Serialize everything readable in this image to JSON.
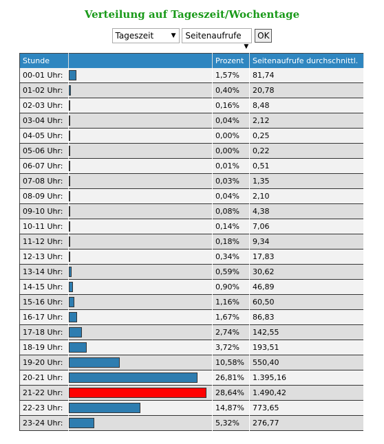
{
  "header": {
    "title": "Verteilung auf Tageszeit/Wochentage"
  },
  "controls": {
    "period": "Tageszeit",
    "metric": "Seitenaufrufe",
    "submit": "OK"
  },
  "table": {
    "columns": {
      "hour": "Stunde",
      "percent": "Prozent",
      "avg": "Seitenaufrufe durchschnittl."
    },
    "bar_color": "#2e7db0",
    "highlight_color": "#ff0000",
    "rows": [
      {
        "hour": "00-01 Uhr:",
        "percent": 1.57,
        "percent_label": "1,57%",
        "avg": "81,74"
      },
      {
        "hour": "01-02 Uhr:",
        "percent": 0.4,
        "percent_label": "0,40%",
        "avg": "20,78"
      },
      {
        "hour": "02-03 Uhr:",
        "percent": 0.16,
        "percent_label": "0,16%",
        "avg": "8,48"
      },
      {
        "hour": "03-04 Uhr:",
        "percent": 0.04,
        "percent_label": "0,04%",
        "avg": "2,12"
      },
      {
        "hour": "04-05 Uhr:",
        "percent": 0.0,
        "percent_label": "0,00%",
        "avg": "0,25"
      },
      {
        "hour": "05-06 Uhr:",
        "percent": 0.0,
        "percent_label": "0,00%",
        "avg": "0,22"
      },
      {
        "hour": "06-07 Uhr:",
        "percent": 0.01,
        "percent_label": "0,01%",
        "avg": "0,51"
      },
      {
        "hour": "07-08 Uhr:",
        "percent": 0.03,
        "percent_label": "0,03%",
        "avg": "1,35"
      },
      {
        "hour": "08-09 Uhr:",
        "percent": 0.04,
        "percent_label": "0,04%",
        "avg": "2,10"
      },
      {
        "hour": "09-10 Uhr:",
        "percent": 0.08,
        "percent_label": "0,08%",
        "avg": "4,38"
      },
      {
        "hour": "10-11 Uhr:",
        "percent": 0.14,
        "percent_label": "0,14%",
        "avg": "7,06"
      },
      {
        "hour": "11-12 Uhr:",
        "percent": 0.18,
        "percent_label": "0,18%",
        "avg": "9,34"
      },
      {
        "hour": "12-13 Uhr:",
        "percent": 0.34,
        "percent_label": "0,34%",
        "avg": "17,83"
      },
      {
        "hour": "13-14 Uhr:",
        "percent": 0.59,
        "percent_label": "0,59%",
        "avg": "30,62"
      },
      {
        "hour": "14-15 Uhr:",
        "percent": 0.9,
        "percent_label": "0,90%",
        "avg": "46,89"
      },
      {
        "hour": "15-16 Uhr:",
        "percent": 1.16,
        "percent_label": "1,16%",
        "avg": "60,50"
      },
      {
        "hour": "16-17 Uhr:",
        "percent": 1.67,
        "percent_label": "1,67%",
        "avg": "86,83"
      },
      {
        "hour": "17-18 Uhr:",
        "percent": 2.74,
        "percent_label": "2,74%",
        "avg": "142,55"
      },
      {
        "hour": "18-19 Uhr:",
        "percent": 3.72,
        "percent_label": "3,72%",
        "avg": "193,51"
      },
      {
        "hour": "19-20 Uhr:",
        "percent": 10.58,
        "percent_label": "10,58%",
        "avg": "550,40"
      },
      {
        "hour": "20-21 Uhr:",
        "percent": 26.81,
        "percent_label": "26,81%",
        "avg": "1.395,16"
      },
      {
        "hour": "21-22 Uhr:",
        "percent": 28.64,
        "percent_label": "28,64%",
        "avg": "1.490,42"
      },
      {
        "hour": "22-23 Uhr:",
        "percent": 14.87,
        "percent_label": "14,87%",
        "avg": "773,65"
      },
      {
        "hour": "23-24 Uhr:",
        "percent": 5.32,
        "percent_label": "5,32%",
        "avg": "276,77"
      }
    ]
  }
}
